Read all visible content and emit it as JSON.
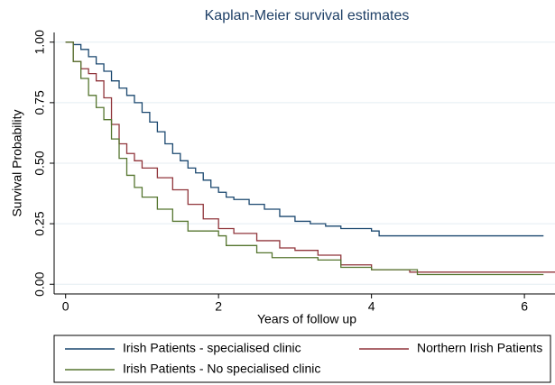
{
  "chart_data": {
    "type": "step",
    "title": "Kaplan-Meier survival estimates",
    "x_label": "Years of follow up",
    "y_label": "Survival Probability",
    "xlim": [
      -0.15,
      6.4
    ],
    "xticks": [
      0,
      2,
      4,
      6
    ],
    "ylim": [
      -0.04,
      1.04
    ],
    "yticks": [
      {
        "value": 0,
        "label": "0.00"
      },
      {
        "value": 0.25,
        "label": "0.25"
      },
      {
        "value": 0.5,
        "label": "0.50"
      },
      {
        "value": 0.75,
        "label": "0.75"
      },
      {
        "value": 1,
        "label": "1.00"
      }
    ],
    "grid": true,
    "series": [
      {
        "name": "Irish Patients - specialised clinic",
        "color": "#1a476f",
        "x": [
          0,
          0.1,
          0.2,
          0.3,
          0.4,
          0.5,
          0.6,
          0.7,
          0.8,
          0.9,
          1.0,
          1.1,
          1.2,
          1.3,
          1.4,
          1.5,
          1.6,
          1.7,
          1.8,
          1.9,
          2.0,
          2.1,
          2.2,
          2.4,
          2.6,
          2.8,
          3.0,
          3.2,
          3.4,
          3.6,
          3.8,
          4.0,
          4.1,
          6.25
        ],
        "values": [
          1.0,
          0.99,
          0.97,
          0.94,
          0.91,
          0.88,
          0.84,
          0.81,
          0.78,
          0.75,
          0.71,
          0.67,
          0.63,
          0.58,
          0.54,
          0.51,
          0.48,
          0.46,
          0.43,
          0.4,
          0.38,
          0.36,
          0.35,
          0.33,
          0.31,
          0.28,
          0.26,
          0.25,
          0.24,
          0.23,
          0.23,
          0.22,
          0.2,
          0.2
        ]
      },
      {
        "name": "Northern Irish Patients",
        "color": "#90353b",
        "x": [
          0,
          0.1,
          0.2,
          0.3,
          0.4,
          0.5,
          0.6,
          0.7,
          0.8,
          0.9,
          1.0,
          1.2,
          1.4,
          1.6,
          1.8,
          2.0,
          2.2,
          2.5,
          2.8,
          3.0,
          3.3,
          3.6,
          4.0,
          4.5,
          6.4
        ],
        "values": [
          1.0,
          0.92,
          0.89,
          0.87,
          0.84,
          0.77,
          0.66,
          0.58,
          0.54,
          0.51,
          0.48,
          0.44,
          0.39,
          0.33,
          0.27,
          0.23,
          0.21,
          0.18,
          0.15,
          0.14,
          0.12,
          0.08,
          0.06,
          0.05,
          0.05
        ]
      },
      {
        "name": "Irish Patients - No specialised clinic",
        "color": "#55752f",
        "x": [
          0,
          0.1,
          0.2,
          0.3,
          0.4,
          0.5,
          0.6,
          0.7,
          0.8,
          0.9,
          1.0,
          1.2,
          1.4,
          1.6,
          2.0,
          2.1,
          2.5,
          2.7,
          3.2,
          3.3,
          3.6,
          4.0,
          4.6,
          6.25
        ],
        "values": [
          1.0,
          0.92,
          0.85,
          0.78,
          0.73,
          0.68,
          0.6,
          0.52,
          0.45,
          0.4,
          0.36,
          0.31,
          0.26,
          0.22,
          0.2,
          0.16,
          0.13,
          0.11,
          0.11,
          0.1,
          0.07,
          0.06,
          0.04,
          0.04
        ]
      }
    ]
  }
}
